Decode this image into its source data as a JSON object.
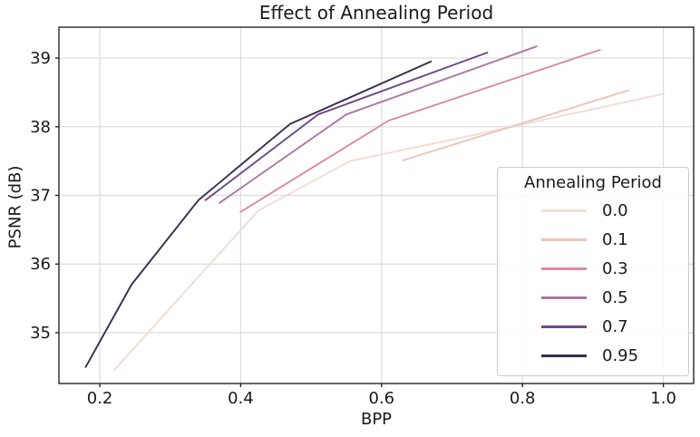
{
  "title": "Effect of Annealing Period",
  "axes": {
    "xlabel": "BPP",
    "ylabel": "PSNR (dB)",
    "x_ticks": [
      0.2,
      0.4,
      0.6,
      0.8,
      1.0
    ],
    "x_tick_labels": [
      "0.2",
      "0.4",
      "0.6",
      "0.8",
      "1.0"
    ],
    "y_ticks": [
      35,
      36,
      37,
      38,
      39
    ],
    "y_tick_labels": [
      "35",
      "36",
      "37",
      "38",
      "39"
    ],
    "xlim": [
      0.142,
      1.043
    ],
    "ylim": [
      34.26,
      39.45
    ],
    "grid": true,
    "grid_color": "#dcdcdc",
    "spine_color": "#262626",
    "text_color": "#1a1a1a"
  },
  "legend": {
    "title": "Annealing Period",
    "position": "center right",
    "entries": [
      {
        "label": "0.0",
        "color": "#f2dcd5"
      },
      {
        "label": "0.1",
        "color": "#edc2bc"
      },
      {
        "label": "0.3",
        "color": "#dc8a9d"
      },
      {
        "label": "0.5",
        "color": "#ab77a5"
      },
      {
        "label": "0.7",
        "color": "#6f4886"
      },
      {
        "label": "0.95",
        "color": "#362d4e"
      }
    ]
  },
  "chart_data": {
    "type": "line",
    "xlabel": "BPP",
    "ylabel": "PSNR (dB)",
    "title": "Effect of Annealing Period",
    "series": [
      {
        "name": "0.0",
        "color": "#f2dcd5",
        "points": [
          [
            0.22,
            34.45
          ],
          [
            0.425,
            36.78
          ],
          [
            0.555,
            37.5
          ],
          [
            0.74,
            37.9
          ],
          [
            1.0,
            38.48
          ]
        ]
      },
      {
        "name": "0.1",
        "color": "#edc2bc",
        "points": [
          [
            0.63,
            37.51
          ],
          [
            0.95,
            38.53
          ]
        ]
      },
      {
        "name": "0.3",
        "color": "#dc8a9d",
        "points": [
          [
            0.4,
            36.76
          ],
          [
            0.61,
            38.09
          ],
          [
            0.91,
            39.12
          ]
        ]
      },
      {
        "name": "0.5",
        "color": "#ab77a5",
        "points": [
          [
            0.37,
            36.89
          ],
          [
            0.55,
            38.18
          ],
          [
            0.82,
            39.17
          ]
        ]
      },
      {
        "name": "0.7",
        "color": "#6f4886",
        "points": [
          [
            0.35,
            36.93
          ],
          [
            0.51,
            38.18
          ],
          [
            0.75,
            39.08
          ]
        ]
      },
      {
        "name": "0.95",
        "color": "#362d4e",
        "points": [
          [
            0.18,
            34.5
          ],
          [
            0.245,
            35.7
          ],
          [
            0.34,
            36.93
          ],
          [
            0.47,
            38.04
          ],
          [
            0.67,
            38.95
          ]
        ]
      }
    ]
  }
}
